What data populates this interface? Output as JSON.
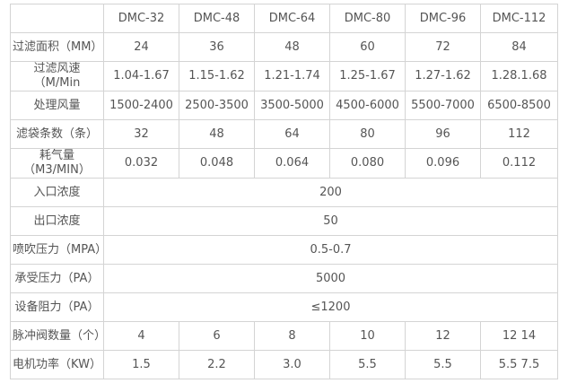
{
  "table": {
    "headers": [
      "",
      "DMC-32",
      "DMC-48",
      "DMC-64",
      "DMC-80",
      "DMC-96",
      "DMC-112"
    ],
    "rows": [
      {
        "label": [
          "过滤面积（MM）"
        ],
        "values": [
          "24",
          "36",
          "48",
          "60",
          "72",
          "84"
        ]
      },
      {
        "label": [
          "过滤风速",
          "（M/Min"
        ],
        "values": [
          "1.04-1.67",
          "1.15-1.62",
          "1.21-1.74",
          "1.25-1.67",
          "1.27-1.62",
          "1.28.1.68"
        ]
      },
      {
        "label": [
          "处理风量"
        ],
        "values": [
          "1500-2400",
          "2500-3500",
          "3500-5000",
          "4500-6000",
          "5500-7000",
          "6500-8500"
        ]
      },
      {
        "label": [
          "滤袋条数（条）"
        ],
        "values": [
          "32",
          "48",
          "64",
          "80",
          "96",
          "112"
        ]
      },
      {
        "label": [
          "耗气量",
          "（M3/MIN）"
        ],
        "values": [
          "0.032",
          "0.048",
          "0.064",
          "0.080",
          "0.096",
          "0.112"
        ]
      },
      {
        "label": [
          "入口浓度"
        ],
        "span_value": "200"
      },
      {
        "label": [
          "出口浓度"
        ],
        "span_value": "50"
      },
      {
        "label": [
          "喷吹压力（MPA）"
        ],
        "span_value": "0.5-0.7"
      },
      {
        "label": [
          "承受压力（PA）"
        ],
        "span_value": "5000"
      },
      {
        "label": [
          "设备阻力（PA）"
        ],
        "span_value": "≤1200"
      },
      {
        "label": [
          "脉冲阀数量（个）"
        ],
        "values": [
          "4",
          "6",
          "8",
          "10",
          "12",
          "12 14"
        ]
      },
      {
        "label": [
          "电机功率（KW）"
        ],
        "values": [
          "1.5",
          "2.2",
          "3.0",
          "5.5",
          "5.5",
          "5.5 7.5"
        ]
      }
    ]
  }
}
